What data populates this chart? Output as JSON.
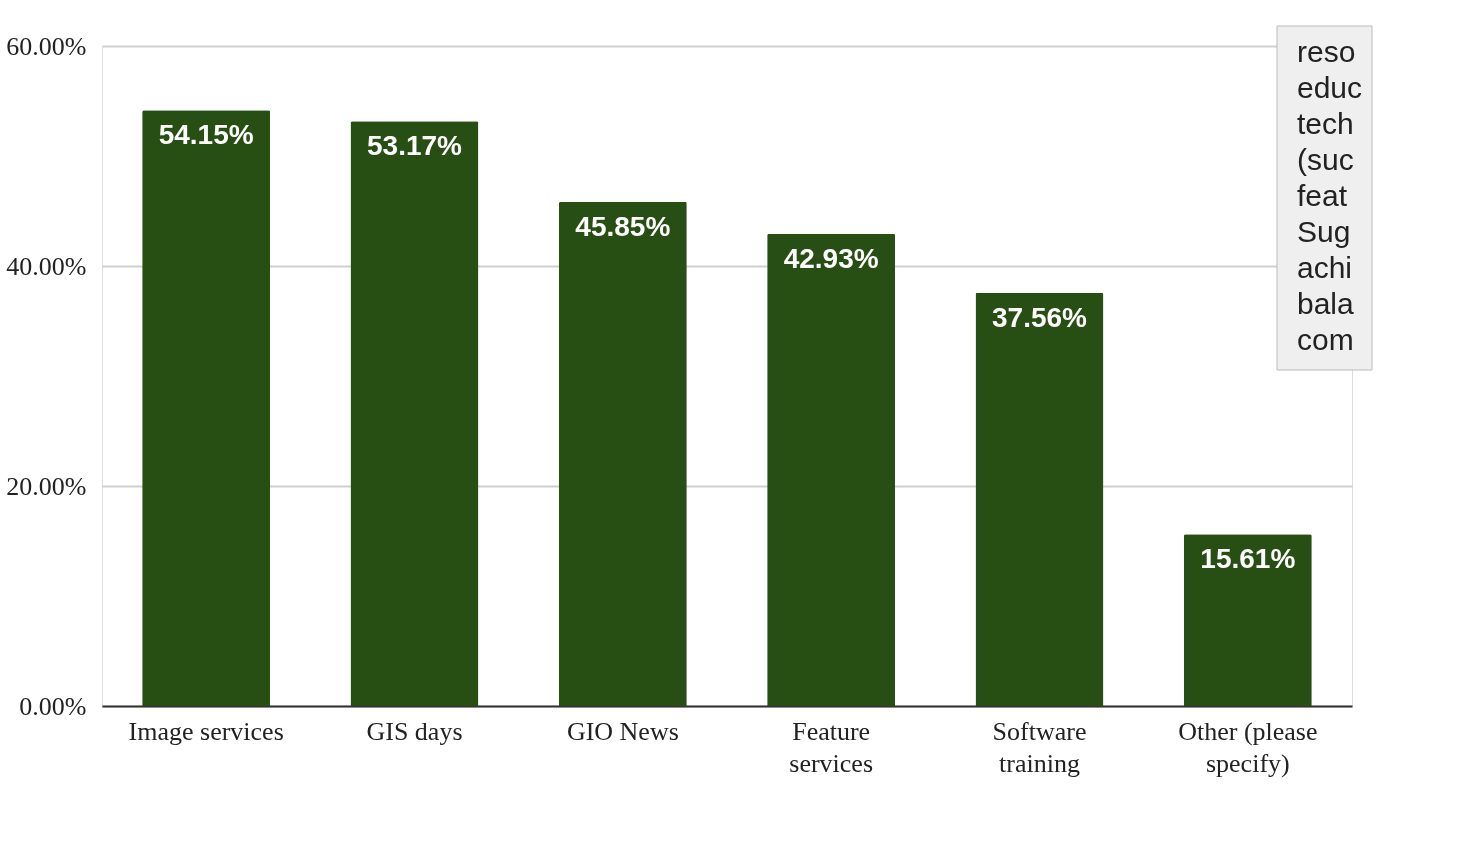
{
  "chart_data": {
    "type": "bar",
    "categories": [
      "Image services",
      "GIS days",
      "GIO News",
      "Feature services",
      "Software training",
      "Other (please specify)"
    ],
    "values": [
      54.15,
      53.17,
      45.85,
      42.93,
      37.56,
      15.61
    ],
    "value_labels": [
      "54.15%",
      "53.17%",
      "45.85%",
      "42.93%",
      "37.56%",
      "15.61%"
    ],
    "color": "#274e13",
    "ylim": [
      0,
      60
    ],
    "yticks": [
      {
        "value": 0,
        "label": "0.00%"
      },
      {
        "value": 20,
        "label": "20.00%"
      },
      {
        "value": 40,
        "label": "40.00%"
      },
      {
        "value": 60,
        "label": "60.00%"
      }
    ],
    "grid": "y",
    "annotations": [
      "reso\neduc\ntech\n(suc\nfeat\nSug\nachi\nbala\ncom"
    ]
  }
}
